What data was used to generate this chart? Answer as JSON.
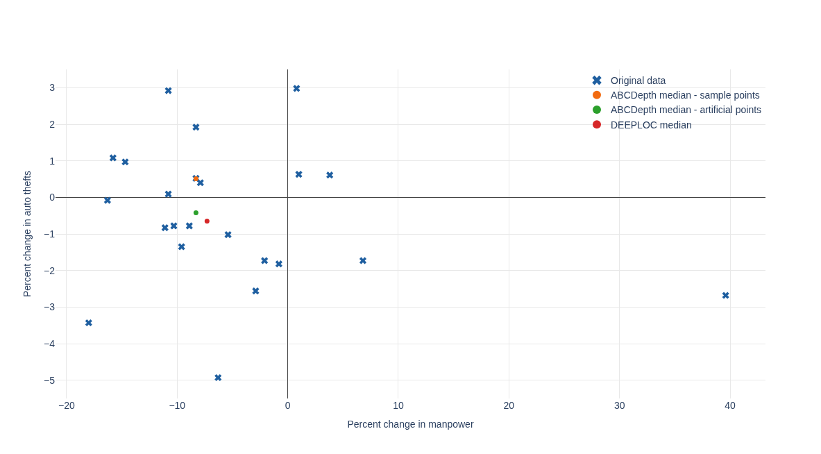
{
  "chart_data": {
    "type": "scatter",
    "xlabel": "Percent change in manpower",
    "ylabel": "Percent change in auto thefts",
    "xlim": [
      -21,
      43.2
    ],
    "ylim": [
      -5.5,
      3.5
    ],
    "xticks": [
      -20,
      -10,
      0,
      10,
      20,
      30,
      40
    ],
    "yticks": [
      -5,
      -4,
      -3,
      -2,
      -1,
      0,
      1,
      2,
      3
    ],
    "grid": true,
    "legend": "top right",
    "series": [
      {
        "name": "Original data",
        "color": "#1f5fa0",
        "marker": "cross",
        "x": [
          -10.8,
          0.8,
          -8.3,
          -15.8,
          -14.7,
          1.0,
          3.8,
          -8.3,
          -7.9,
          -10.8,
          -16.3,
          -11.1,
          -10.3,
          -8.9,
          -9.6,
          -5.4,
          -2.1,
          -0.8,
          6.8,
          -2.9,
          -18.0,
          -6.3,
          39.6
        ],
        "values": [
          2.92,
          2.98,
          1.92,
          1.08,
          0.97,
          0.63,
          0.61,
          0.52,
          0.4,
          0.09,
          -0.08,
          -0.83,
          -0.78,
          -0.78,
          -1.35,
          -1.02,
          -1.73,
          -1.82,
          -1.73,
          -2.56,
          -3.43,
          -4.93,
          -2.68
        ]
      },
      {
        "name": "ABCDepth median - sample points",
        "color": "#f26b10",
        "marker": "circle",
        "x": [
          -8.3
        ],
        "values": [
          0.51
        ]
      },
      {
        "name": "ABCDepth median - artificial points",
        "color": "#2ca02c",
        "marker": "circle",
        "x": [
          -8.3
        ],
        "values": [
          -0.42
        ]
      },
      {
        "name": "DEEPLOC median",
        "color": "#d62728",
        "marker": "circle",
        "x": [
          -7.3
        ],
        "values": [
          -0.65
        ]
      }
    ]
  }
}
